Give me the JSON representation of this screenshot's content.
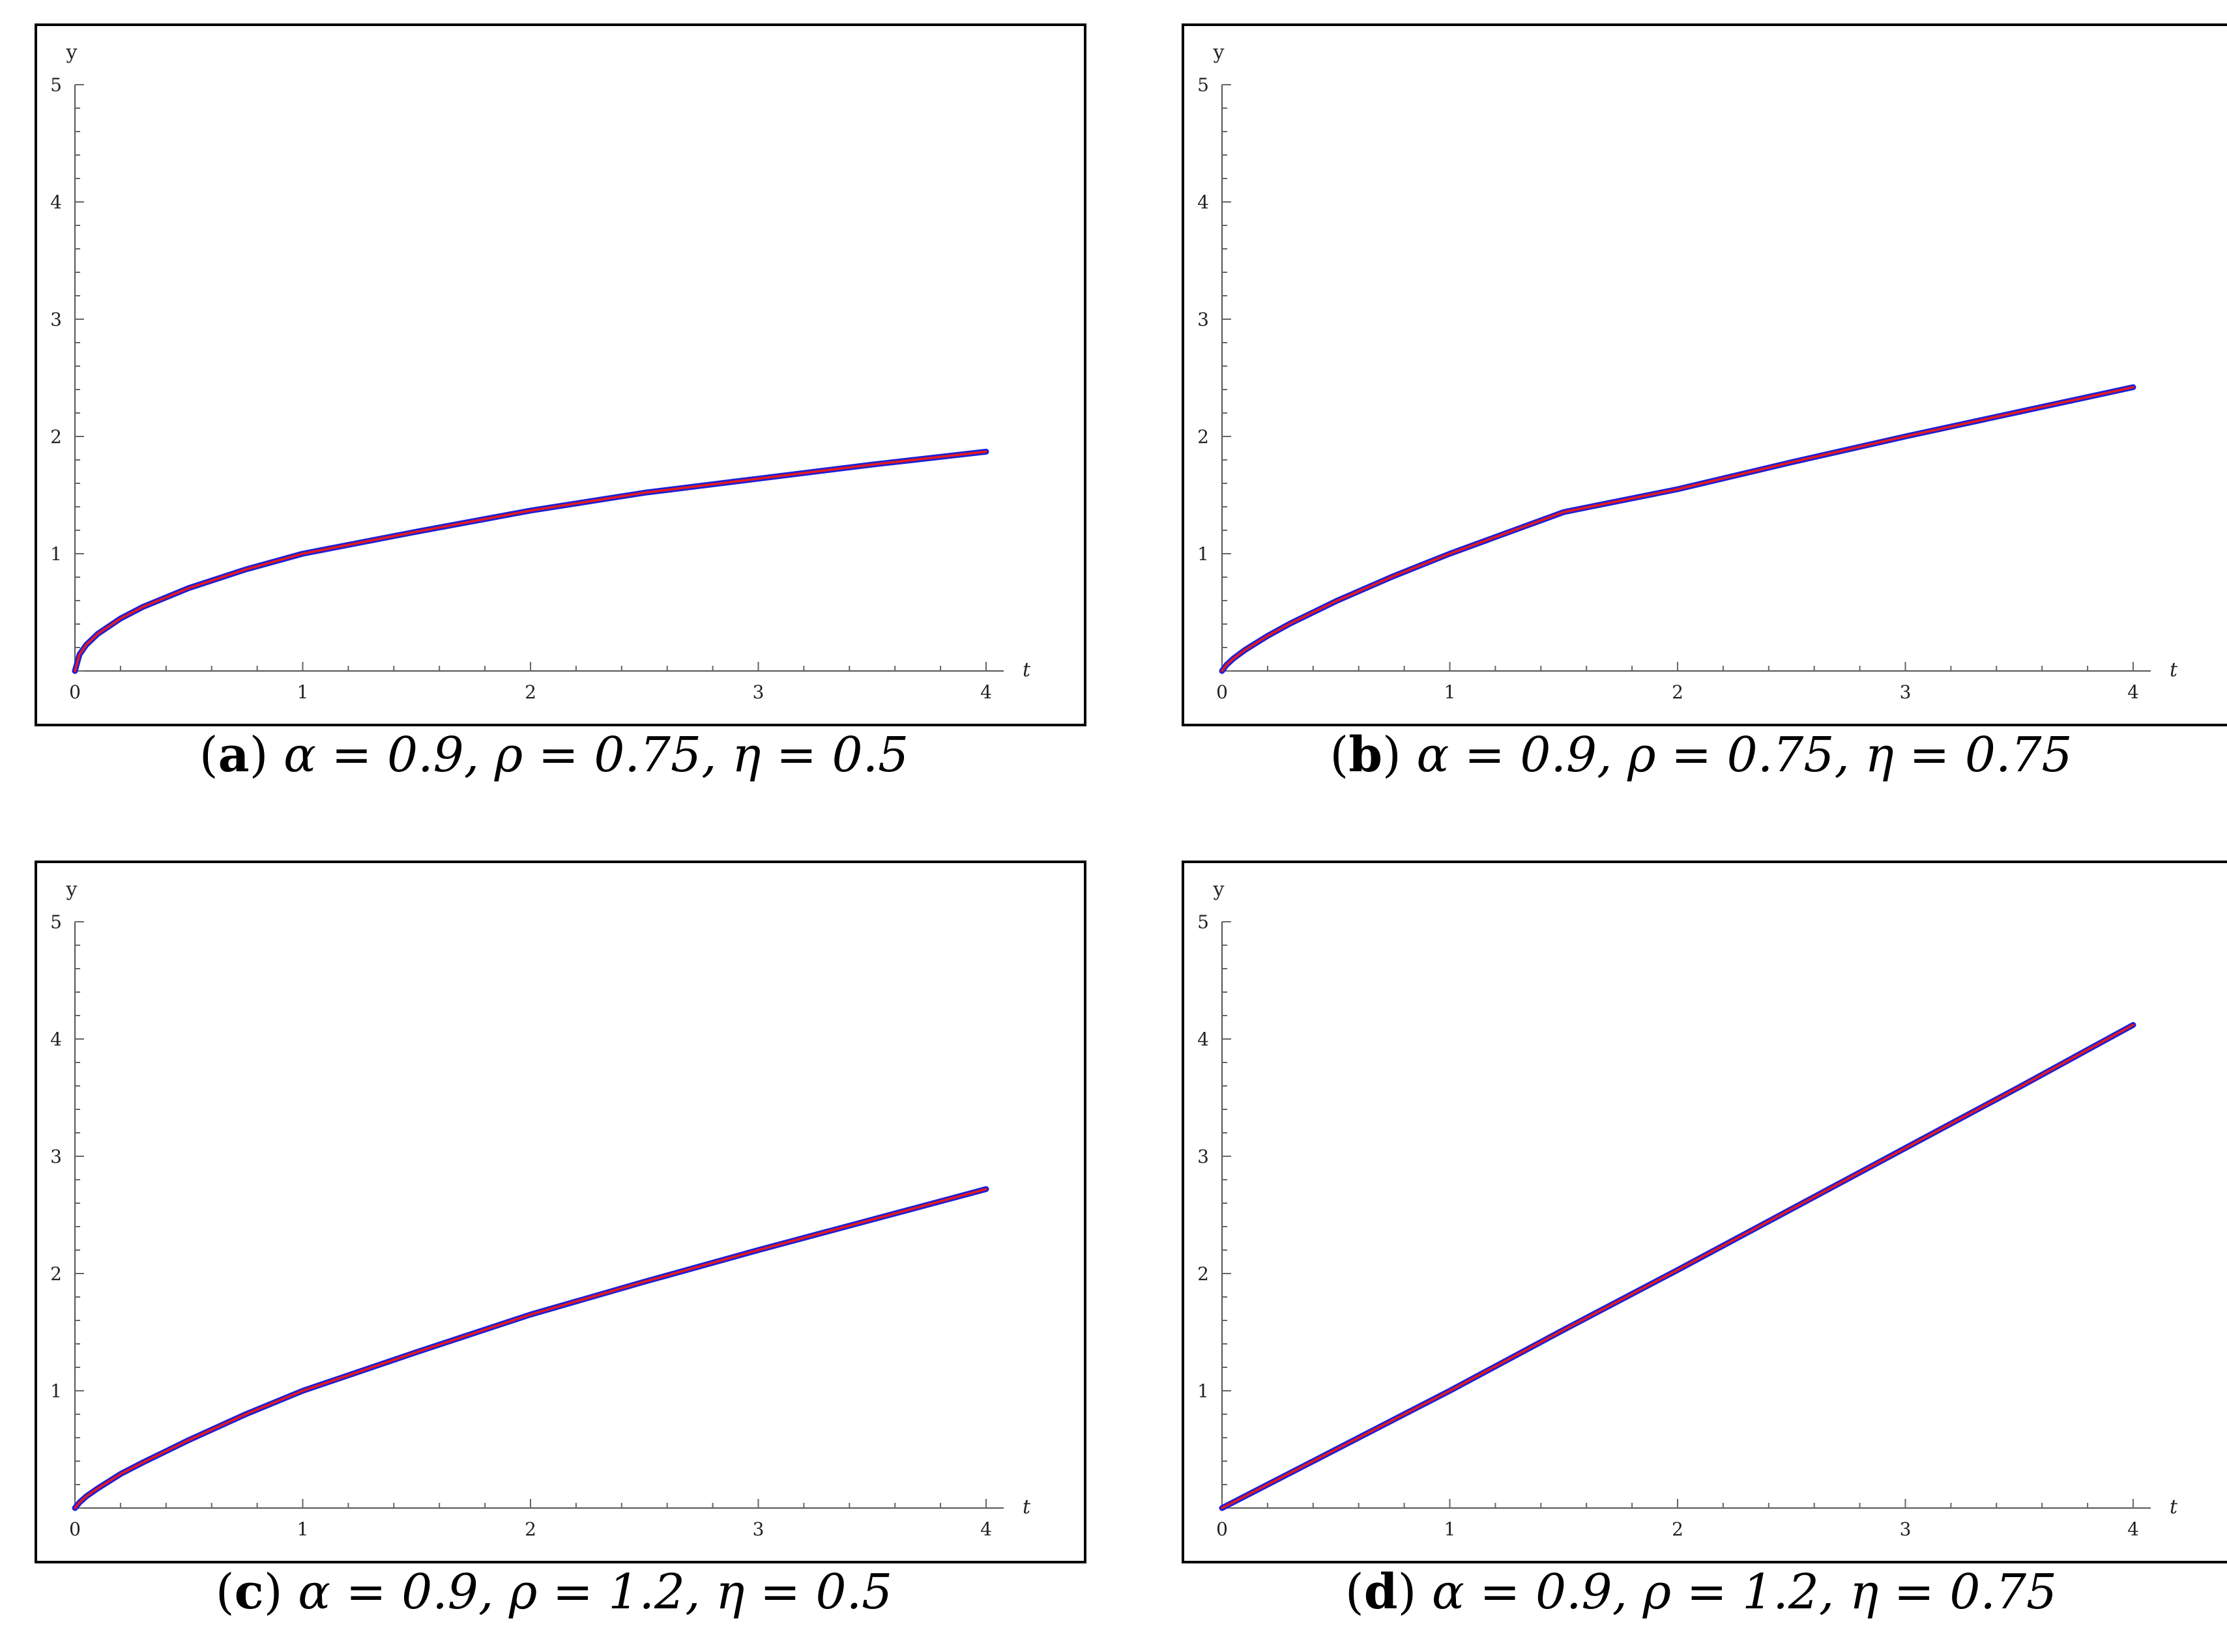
{
  "chart_data": [
    {
      "id": "a",
      "type": "line",
      "caption": {
        "label": "a",
        "params": "α = 0.9, ρ = 0.75, η = 0.5"
      },
      "xlabel": "t",
      "ylabel": "y",
      "xlim": [
        0,
        4
      ],
      "ylim": [
        0,
        5
      ],
      "xticks": [
        0,
        1,
        2,
        3,
        4
      ],
      "yticks": [
        1,
        2,
        3,
        4,
        5
      ],
      "tick_label_x0": "0",
      "grid": false,
      "series": [
        {
          "color": "#1f1fd6",
          "x": [
            0,
            0.02,
            0.05,
            0.1,
            0.2,
            0.3,
            0.5,
            0.75,
            1,
            1.5,
            2,
            2.5,
            3,
            3.5,
            4
          ],
          "y": [
            0,
            0.141,
            0.224,
            0.316,
            0.447,
            0.548,
            0.707,
            0.866,
            1.0,
            1.188,
            1.368,
            1.52,
            1.64,
            1.76,
            1.87
          ]
        },
        {
          "color": "#e81a1a",
          "x": [
            0,
            0.02,
            0.05,
            0.1,
            0.2,
            0.3,
            0.5,
            0.75,
            1,
            1.5,
            2,
            2.5,
            3,
            3.5,
            4
          ],
          "y": [
            0,
            0.141,
            0.224,
            0.316,
            0.447,
            0.548,
            0.707,
            0.866,
            1.0,
            1.188,
            1.368,
            1.52,
            1.64,
            1.76,
            1.87
          ]
        }
      ]
    },
    {
      "id": "b",
      "type": "line",
      "caption": {
        "label": "b",
        "params": "α = 0.9, ρ = 0.75, η = 0.75"
      },
      "xlabel": "t",
      "ylabel": "y",
      "xlim": [
        0,
        4
      ],
      "ylim": [
        0,
        5
      ],
      "xticks": [
        0,
        1,
        2,
        3,
        4
      ],
      "yticks": [
        1,
        2,
        3,
        4,
        5
      ],
      "tick_label_x0": "0",
      "grid": false,
      "series": [
        {
          "color": "#1f1fd6",
          "x": [
            0,
            0.02,
            0.05,
            0.1,
            0.2,
            0.3,
            0.5,
            0.75,
            1,
            1.5,
            2,
            2.5,
            3,
            3.5,
            4
          ],
          "y": [
            0,
            0.053,
            0.106,
            0.178,
            0.299,
            0.405,
            0.595,
            0.806,
            1.0,
            1.355,
            1.55,
            1.78,
            2.0,
            2.21,
            2.42
          ]
        },
        {
          "color": "#e81a1a",
          "x": [
            0,
            0.02,
            0.05,
            0.1,
            0.2,
            0.3,
            0.5,
            0.75,
            1,
            1.5,
            2,
            2.5,
            3,
            3.5,
            4
          ],
          "y": [
            0,
            0.053,
            0.106,
            0.178,
            0.299,
            0.405,
            0.595,
            0.806,
            1.0,
            1.355,
            1.55,
            1.78,
            2.0,
            2.21,
            2.42
          ]
        }
      ]
    },
    {
      "id": "c",
      "type": "line",
      "caption": {
        "label": "c",
        "params": "α = 0.9, ρ = 1.2, η = 0.5"
      },
      "xlabel": "t",
      "ylabel": "y",
      "xlim": [
        0,
        4
      ],
      "ylim": [
        0,
        5
      ],
      "xticks": [
        0,
        1,
        2,
        3,
        4
      ],
      "yticks": [
        1,
        2,
        3,
        4,
        5
      ],
      "tick_label_x0": "0",
      "grid": false,
      "series": [
        {
          "color": "#1f1fd6",
          "x": [
            0,
            0.02,
            0.05,
            0.1,
            0.2,
            0.3,
            0.5,
            0.75,
            1,
            1.5,
            2,
            2.5,
            3,
            3.5,
            4
          ],
          "y": [
            0,
            0.048,
            0.1,
            0.167,
            0.29,
            0.39,
            0.58,
            0.8,
            1.0,
            1.33,
            1.65,
            1.93,
            2.2,
            2.46,
            2.72
          ]
        },
        {
          "color": "#e81a1a",
          "x": [
            0,
            0.02,
            0.05,
            0.1,
            0.2,
            0.3,
            0.5,
            0.75,
            1,
            1.5,
            2,
            2.5,
            3,
            3.5,
            4
          ],
          "y": [
            0,
            0.048,
            0.1,
            0.167,
            0.29,
            0.39,
            0.58,
            0.8,
            1.0,
            1.33,
            1.65,
            1.93,
            2.2,
            2.46,
            2.72
          ]
        }
      ]
    },
    {
      "id": "d",
      "type": "line",
      "caption": {
        "label": "d",
        "params": "α = 0.9, ρ = 1.2, η = 0.75"
      },
      "xlabel": "t",
      "ylabel": "y",
      "xlim": [
        0,
        4
      ],
      "ylim": [
        0,
        5
      ],
      "xticks": [
        0,
        1,
        2,
        3,
        4
      ],
      "yticks": [
        1,
        2,
        3,
        4,
        5
      ],
      "tick_label_x0": "0",
      "grid": false,
      "series": [
        {
          "color": "#1f1fd6",
          "x": [
            0,
            0.5,
            1,
            1.5,
            2,
            2.5,
            3,
            3.5,
            4
          ],
          "y": [
            0,
            0.5,
            1.0,
            1.52,
            2.03,
            2.55,
            3.07,
            3.59,
            4.12
          ]
        },
        {
          "color": "#e81a1a",
          "x": [
            0,
            0.5,
            1,
            1.5,
            2,
            2.5,
            3,
            3.5,
            4
          ],
          "y": [
            0,
            0.5,
            1.0,
            1.52,
            2.03,
            2.55,
            3.07,
            3.59,
            4.12
          ]
        }
      ]
    }
  ]
}
